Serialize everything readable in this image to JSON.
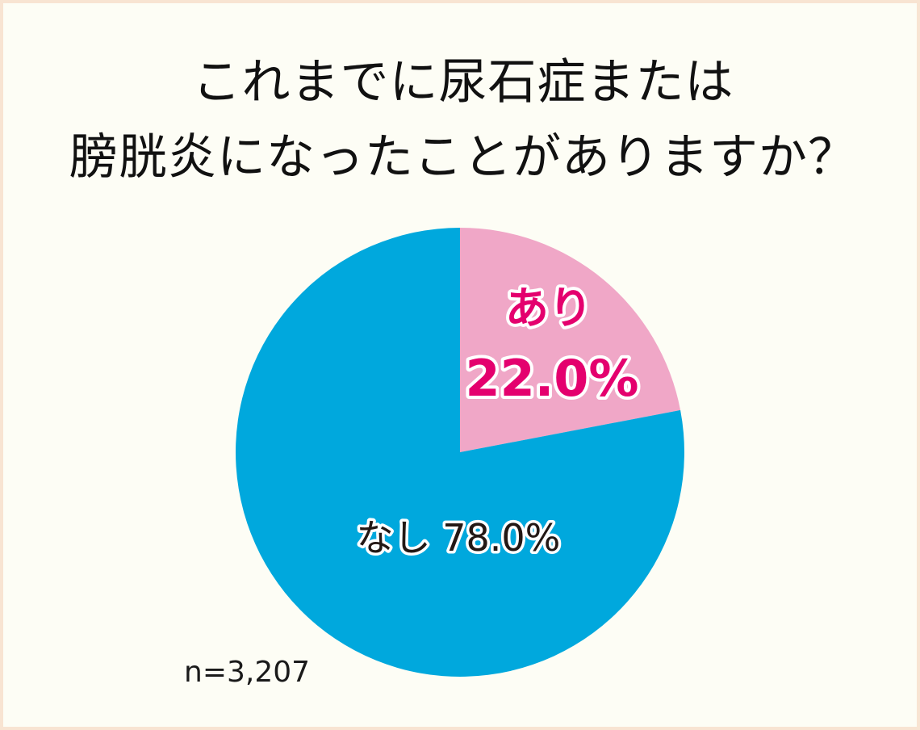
{
  "title_lines": [
    "これまでに尿石症または",
    "膀胱炎になったことがありますか？"
  ],
  "chart_data": {
    "type": "pie",
    "title": "これまでに尿石症または膀胱炎になったことがありますか？",
    "start_angle": "12 o'clock, clockwise",
    "slices": [
      {
        "label": "あり",
        "value": 22.0,
        "value_label": "22.0%",
        "color": "#f0a7c7",
        "label_color": "#e4006e"
      },
      {
        "label": "なし",
        "value": 78.0,
        "value_label": "78.0%",
        "color": "#00a8dd",
        "label_color": "#231815"
      }
    ],
    "sample_size": "n=3,207"
  },
  "colors": {
    "background": "#fdfdf5",
    "border": "#f8e4d2",
    "title": "#111111"
  }
}
